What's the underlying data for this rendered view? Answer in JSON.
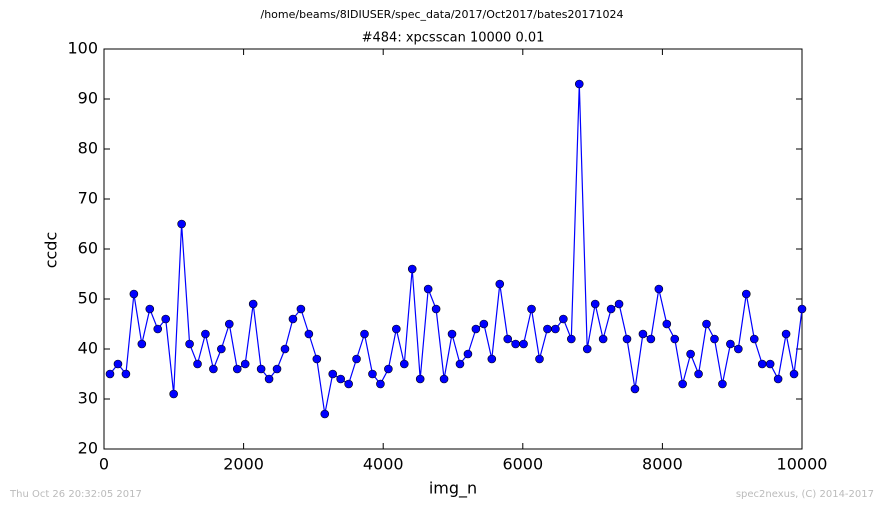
{
  "chart_data": {
    "type": "line",
    "suptitle": "/home/beams/8IDIUSER/spec_data/2017/Oct2017/bates20171024",
    "title": "#484: xpcsscan 10000 0.01",
    "xlabel": "img_n",
    "ylabel": "ccdc",
    "footer_left": "Thu Oct 26 20:32:05 2017",
    "footer_right": "spec2nexus, (C) 2014-2017",
    "xlim": [
      0,
      10000
    ],
    "ylim": [
      20,
      100
    ],
    "xticks": [
      0,
      2000,
      4000,
      6000,
      8000,
      10000
    ],
    "yticks": [
      20,
      30,
      40,
      50,
      60,
      70,
      80,
      90,
      100
    ],
    "x": [
      86,
      200,
      314,
      428,
      542,
      656,
      770,
      884,
      998,
      1112,
      1226,
      1340,
      1453,
      1567,
      1681,
      1795,
      1909,
      2023,
      2137,
      2251,
      2365,
      2479,
      2593,
      2707,
      2821,
      2935,
      3049,
      3163,
      3277,
      3391,
      3505,
      3618,
      3732,
      3846,
      3960,
      4074,
      4188,
      4302,
      4416,
      4530,
      4644,
      4758,
      4872,
      4986,
      5100,
      5214,
      5328,
      5442,
      5556,
      5670,
      5784,
      5897,
      6011,
      6125,
      6239,
      6353,
      6467,
      6581,
      6695,
      6809,
      6923,
      7037,
      7151,
      7265,
      7379,
      7493,
      7607,
      7721,
      7835,
      7949,
      8063,
      8177,
      8290,
      8404,
      8518,
      8632,
      8746,
      8860,
      8974,
      9088,
      9202,
      9316,
      9430,
      9544,
      9658,
      9772,
      9886,
      10000
    ],
    "series": [
      {
        "color": "#0000ff",
        "values": [
          35,
          37,
          35,
          51,
          41,
          48,
          44,
          46,
          31,
          65,
          41,
          37,
          43,
          36,
          40,
          45,
          36,
          37,
          49,
          36,
          34,
          36,
          40,
          46,
          48,
          43,
          38,
          27,
          35,
          34,
          33,
          38,
          43,
          35,
          33,
          36,
          44,
          37,
          56,
          34,
          52,
          48,
          34,
          43,
          37,
          39,
          44,
          45,
          38,
          53,
          42,
          41,
          41,
          48,
          38,
          44,
          44,
          46,
          42,
          93,
          40,
          49,
          42,
          48,
          49,
          42,
          32,
          43,
          42,
          52,
          45,
          42,
          33,
          39,
          35,
          45,
          42,
          33,
          41,
          40,
          51,
          42,
          37,
          37,
          34,
          43,
          35,
          48
        ]
      }
    ]
  }
}
